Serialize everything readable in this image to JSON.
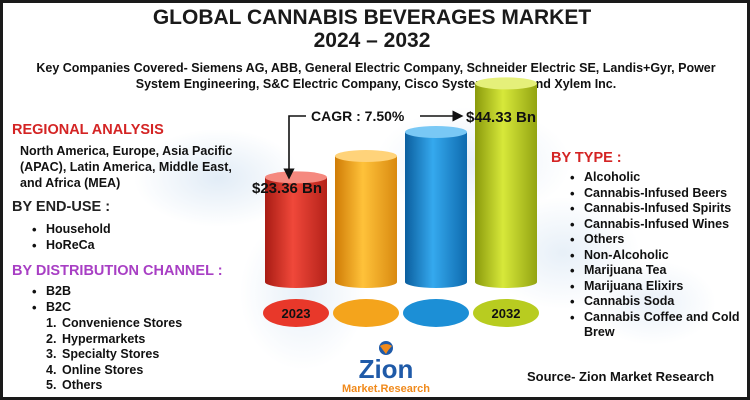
{
  "title_line1": "GLOBAL CANNABIS BEVERAGES MARKET",
  "title_line2": "2024 – 2032",
  "key_companies": "Key Companies Covered- Siemens AG, ABB, General Electric Company, Schneider Electric SE, Landis+Gyr, Power System Engineering, S&C Electric Company, Cisco Systems, Inc., and Xylem Inc.",
  "regional_analysis": {
    "heading": "REGIONAL ANALYSIS",
    "text": "North America, Europe, Asia Pacific (APAC), Latin America, Middle East, and Africa (MEA)"
  },
  "end_use": {
    "heading": "BY END-USE :",
    "items": [
      "Household",
      "HoReCa"
    ]
  },
  "distribution": {
    "heading": "BY DISTRIBUTION CHANNEL :",
    "bullets": [
      "B2B",
      "B2C"
    ],
    "numbered": [
      "Convenience Stores",
      "Hypermarkets",
      "Specialty Stores",
      "Online Stores",
      "Others"
    ]
  },
  "by_type": {
    "heading": "BY TYPE :",
    "items": [
      "Alcoholic",
      "Cannabis-Infused Beers",
      "Cannabis-Infused Spirits",
      "Cannabis-Infused Wines",
      "Others",
      "Non-Alcoholic",
      "Marijuana Tea",
      "Marijuana Elixirs",
      "Cannabis Soda",
      "Cannabis Coffee and Cold Brew"
    ]
  },
  "source": "Source- Zion Market Research",
  "logo": {
    "word": "Zion",
    "sub": "Market.Research"
  },
  "colors": {
    "bar_2023": "#e8382a",
    "bar_2": "#f4a41c",
    "bar_3": "#1c8fd6",
    "bar_2032": "#b8cc20",
    "red": "#d42424",
    "purple": "#a83fc4",
    "logo_blue": "#1f5aa8",
    "logo_orange": "#f08a1c"
  },
  "chart_data": {
    "type": "bar",
    "categories": [
      "2023",
      "",
      "",
      "2032"
    ],
    "values": [
      23.36,
      null,
      null,
      44.33
    ],
    "value_labels": [
      "$23.36 Bn",
      "",
      "",
      "$44.33 Bn"
    ],
    "annotation": "CAGR : 7.50%",
    "unit": "Bn"
  }
}
